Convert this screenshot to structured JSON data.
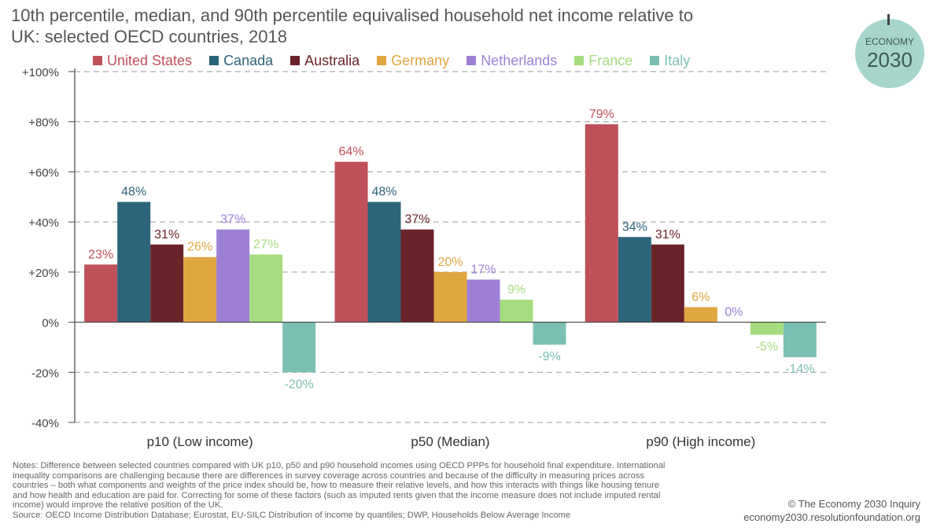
{
  "title_line1": "10th percentile, median, and 90th percentile equivalised household net income relative to",
  "title_line2": "UK: selected OECD countries, 2018",
  "logo": {
    "top": "ECONOMY",
    "bottom": "2030",
    "color": "#a6d5cc"
  },
  "chart_data": {
    "type": "bar",
    "title": "10th percentile, median, and 90th percentile equivalised household net income relative to UK: selected OECD countries, 2018",
    "categories": [
      "p10 (Low income)",
      "p50 (Median)",
      "p90 (High income)"
    ],
    "series": [
      {
        "name": "United States",
        "color": "#c0505a",
        "values": [
          23,
          64,
          79
        ],
        "labels": [
          "23%",
          "64%",
          "79%"
        ]
      },
      {
        "name": "Canada",
        "color": "#2c647a",
        "values": [
          48,
          48,
          34
        ],
        "labels": [
          "48%",
          "48%",
          "34%"
        ]
      },
      {
        "name": "Australia",
        "color": "#6a2429",
        "values": [
          31,
          37,
          31
        ],
        "labels": [
          "31%",
          "37%",
          "31%"
        ]
      },
      {
        "name": "Germany",
        "color": "#e0a640",
        "values": [
          26,
          20,
          6
        ],
        "labels": [
          "26%",
          "20%",
          "6%"
        ]
      },
      {
        "name": "Netherlands",
        "color": "#9d80d6",
        "values": [
          37,
          17,
          0
        ],
        "labels": [
          "37%",
          "17%",
          "0%"
        ]
      },
      {
        "name": "France",
        "color": "#a5dc7f",
        "values": [
          27,
          9,
          -5
        ],
        "labels": [
          "27%",
          "9%",
          "-5%"
        ]
      },
      {
        "name": "Italy",
        "color": "#7cc0b4",
        "values": [
          -20,
          -9,
          -14
        ],
        "labels": [
          "-20%",
          "-9%",
          "-14%"
        ]
      }
    ],
    "ylim": [
      -40,
      100
    ],
    "yticks": [
      100,
      80,
      60,
      40,
      20,
      0,
      -20,
      -40
    ],
    "ytick_labels": [
      "+100%",
      "+80%",
      "+60%",
      "+40%",
      "+20%",
      "0%",
      "-20%",
      "-40%"
    ],
    "grid": true,
    "legend_position": "top"
  },
  "notes": [
    "Notes: Difference between selected countries compared with UK p10, p50 and p90 household incomes using OECD PPPs for household final expenditure. International",
    "inequality comparisons are challenging because there are differences in survey coverage across countries and because of the difficulty in measuring prices across",
    "countries – both what components and weights of the price index should be, how to measure their relative levels, and how this interacts with things like housing tenure",
    "and how health and education are paid for. Correcting for some of these factors (such as imputed rents given that the income measure does not include imputed rental",
    "income) would improve the relative position of the UK.",
    "Source: OECD Income Distribution Database; Eurostat, EU-SILC Distribution of income by quantiles; DWP, Households Below Average Income"
  ],
  "credit": {
    "line1": "© The Economy 2030 Inquiry",
    "line2": "economy2030.resolutionfoundation.org"
  }
}
